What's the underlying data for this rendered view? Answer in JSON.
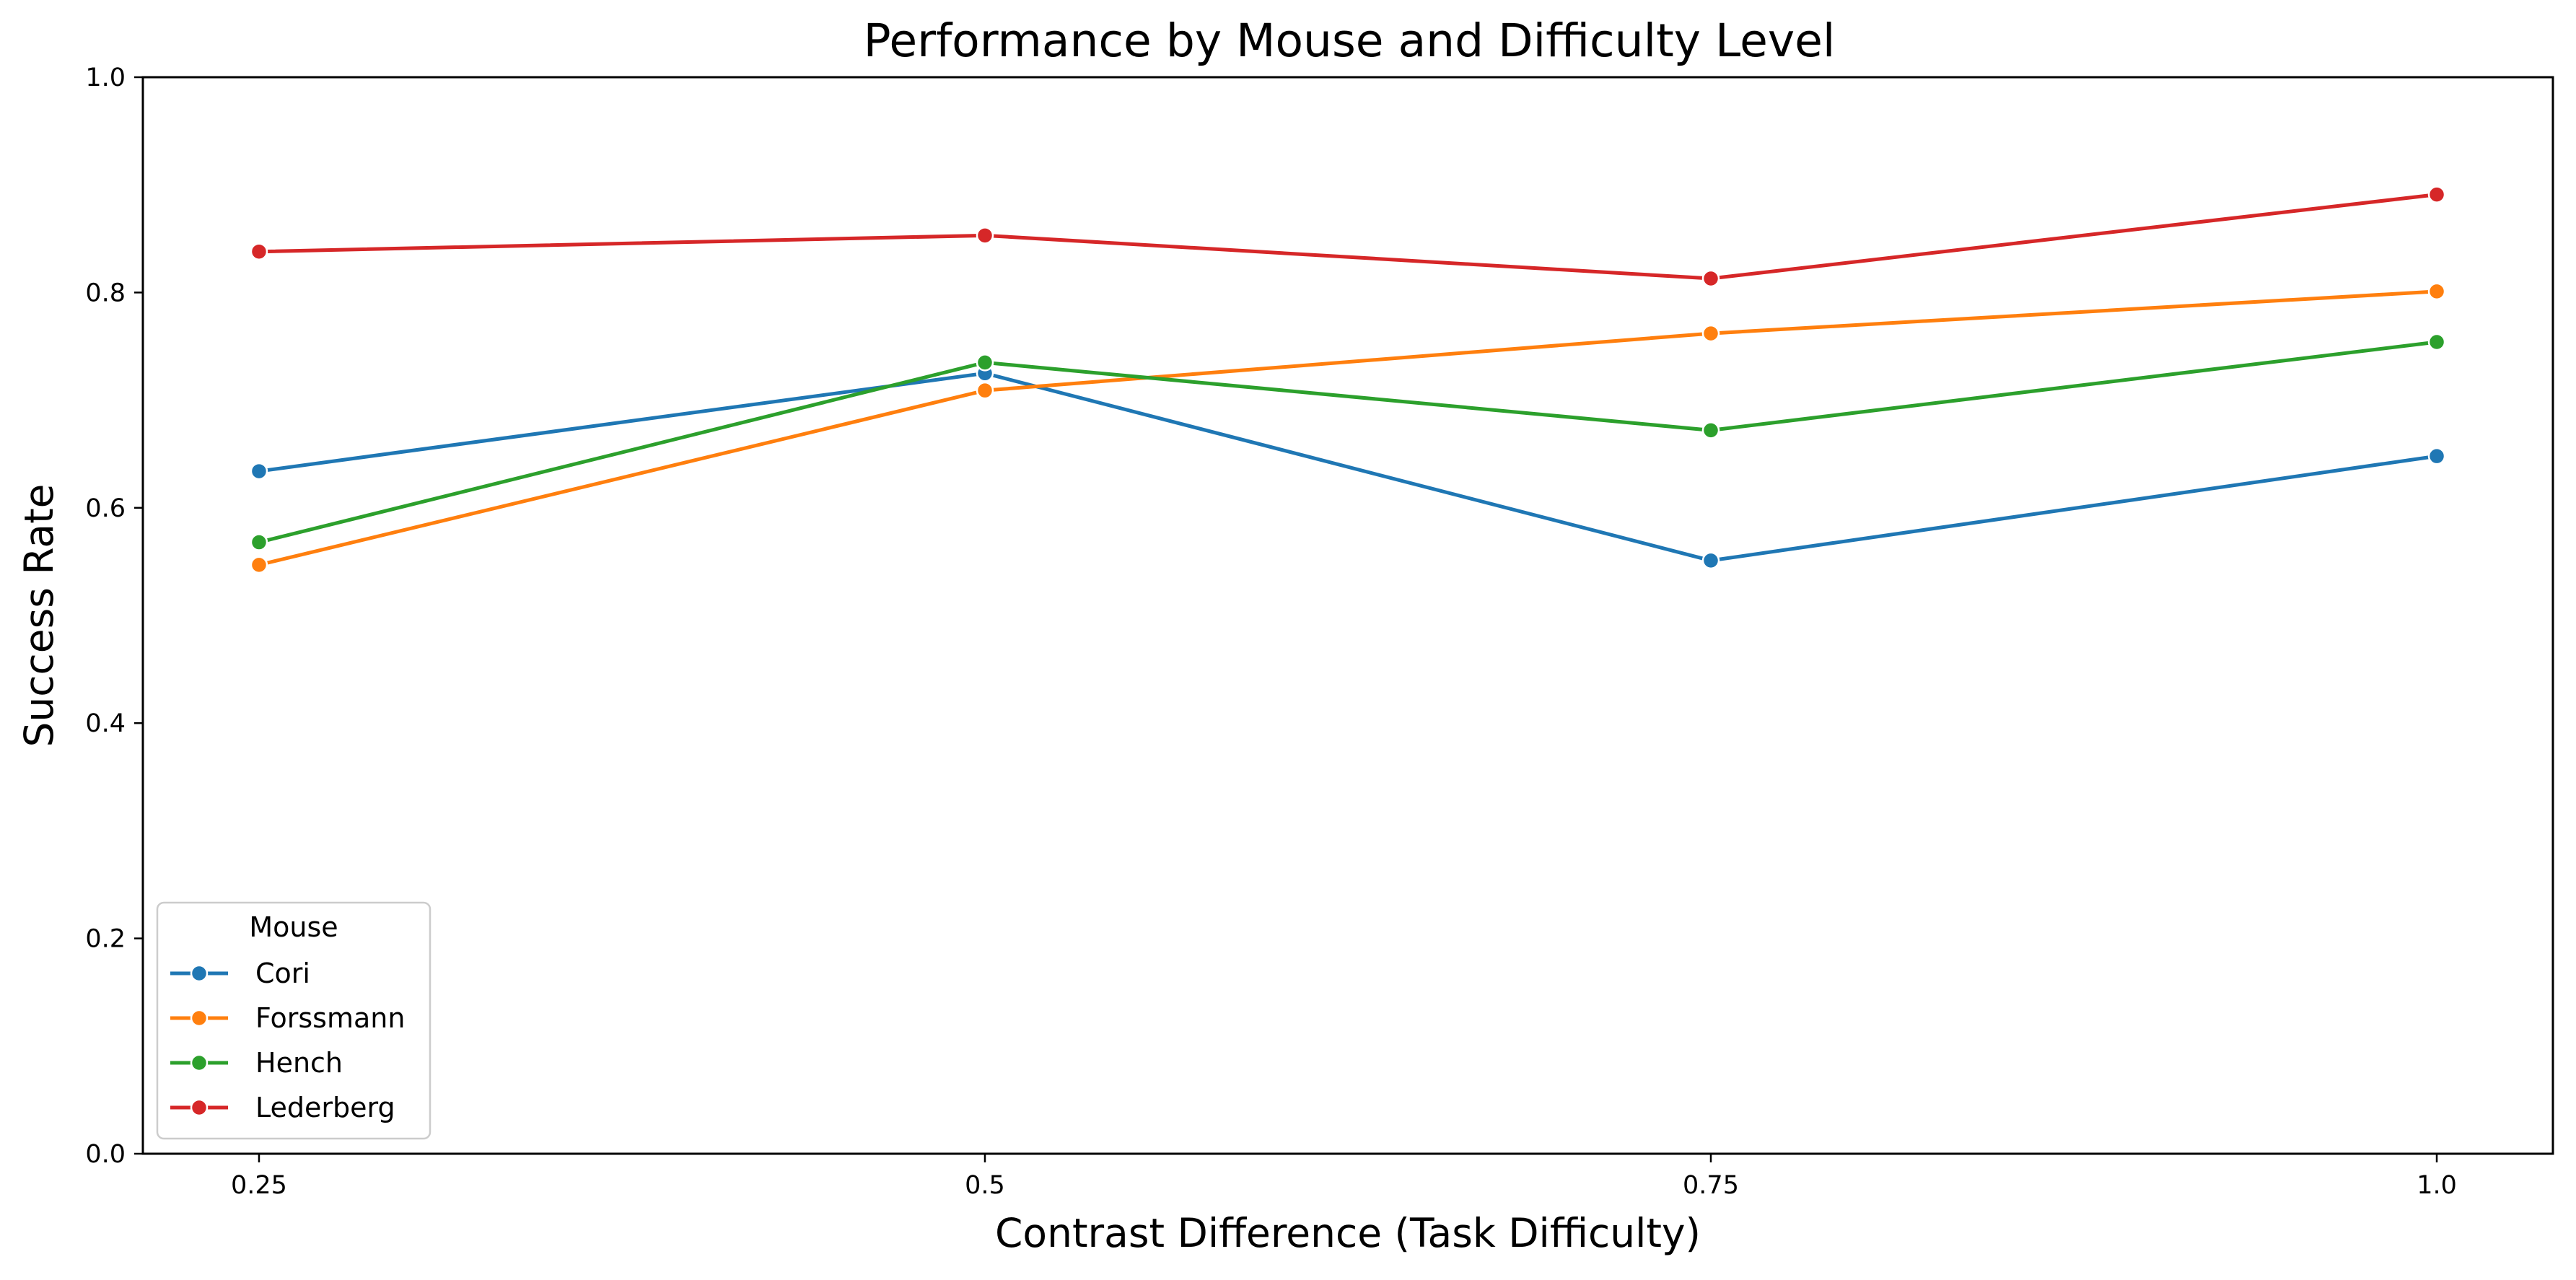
{
  "chart_data": {
    "type": "line",
    "title": "Performance by Mouse and Difficulty Level",
    "xlabel": "Contrast Difference (Task Difficulty)",
    "ylabel": "Success Rate",
    "x": [
      0.25,
      0.5,
      0.75,
      1.0
    ],
    "x_tick_labels": [
      "0.25",
      "0.5",
      "0.75",
      "1.0"
    ],
    "xlim": [
      0.21,
      1.04
    ],
    "ylim": [
      0.0,
      1.0
    ],
    "y_ticks": [
      0.0,
      0.2,
      0.4,
      0.6,
      0.8,
      1.0
    ],
    "y_tick_labels": [
      "0.0",
      "0.2",
      "0.4",
      "0.6",
      "0.8",
      "1.0"
    ],
    "grid": false,
    "legend": {
      "title": "Mouse",
      "placement": "lower-left"
    },
    "series": [
      {
        "name": "Cori",
        "color": "#1f77b4",
        "values": [
          0.634,
          0.725,
          0.551,
          0.648
        ]
      },
      {
        "name": "Forssmann",
        "color": "#ff7f0e",
        "values": [
          0.547,
          0.709,
          0.762,
          0.801
        ]
      },
      {
        "name": "Hench",
        "color": "#2ca02c",
        "values": [
          0.568,
          0.735,
          0.672,
          0.754
        ]
      },
      {
        "name": "Lederberg",
        "color": "#d62728",
        "values": [
          0.838,
          0.853,
          0.813,
          0.891
        ]
      }
    ]
  }
}
